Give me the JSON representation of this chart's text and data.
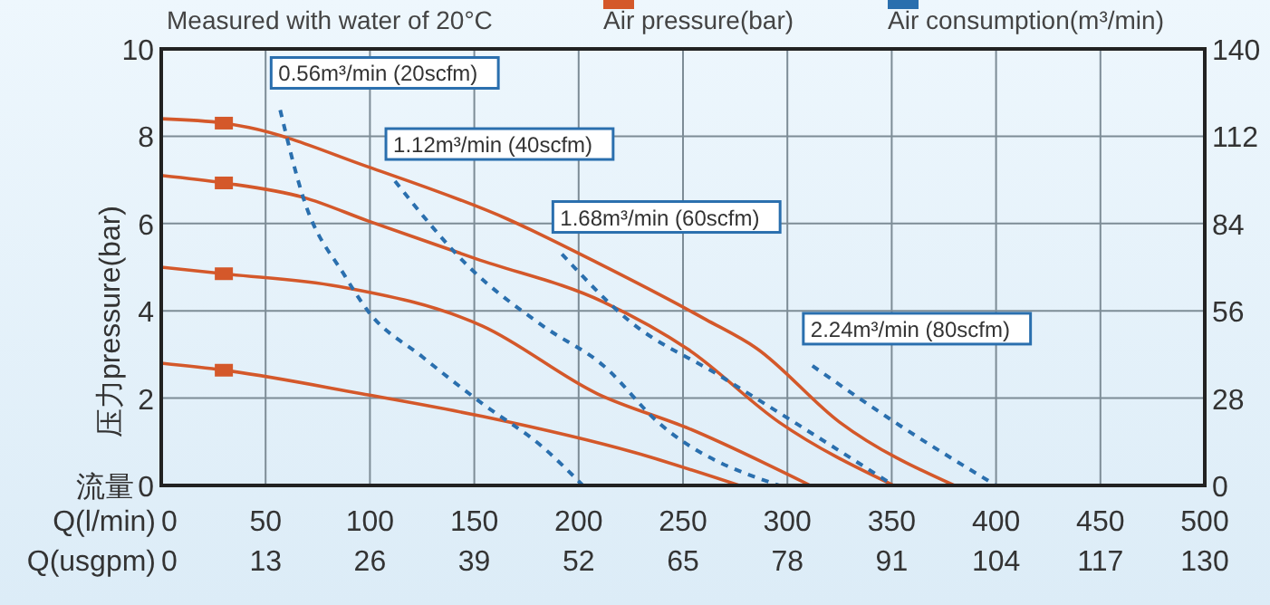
{
  "chart_data": {
    "type": "line",
    "subtitle": "Measured with water of 20°C",
    "xlabel": "Q(l/min)",
    "x2label": "Q(usgpm)",
    "ylabel": "压力pressure(bar)",
    "y2label": "Air consumption(m³/min)",
    "annotations": [
      "流量"
    ],
    "xlim": [
      0,
      500
    ],
    "xticks": [
      0,
      50,
      100,
      150,
      200,
      250,
      300,
      350,
      400,
      450,
      500
    ],
    "x2lim": [
      0,
      130
    ],
    "x2ticks": [
      0,
      13,
      26,
      39,
      52,
      65,
      78,
      91,
      104,
      117,
      130
    ],
    "ylim": [
      0,
      10
    ],
    "yticks": [
      0,
      2,
      4,
      6,
      8,
      10
    ],
    "y2lim": [
      0,
      140
    ],
    "y2ticks": [
      0,
      28,
      56,
      84,
      112,
      140
    ],
    "grid": true,
    "legend": "top",
    "line_style": "solid",
    "series": [
      {
        "name": "Air pressure(bar)",
        "color": "#d4582a",
        "x": [
          0,
          30,
          42,
          99,
          166,
          209,
          261,
          285,
          325,
          380
        ],
        "values": [
          8.4,
          8.3,
          8.2,
          7.3,
          6.1,
          5.1,
          3.8,
          3.15,
          1.45,
          0
        ]
      },
      {
        "color": "#d4582a",
        "x": [
          0,
          30,
          68,
          99,
          151,
          212,
          253,
          296,
          351
        ],
        "values": [
          7.1,
          6.93,
          6.6,
          6.06,
          5.19,
          4.2,
          3.1,
          1.45,
          0
        ]
      },
      {
        "color": "#d4582a",
        "x": [
          0,
          30,
          85,
          154,
          209,
          253,
          311
        ],
        "values": [
          5.0,
          4.85,
          4.56,
          3.65,
          2.1,
          1.3,
          0
        ]
      },
      {
        "color": "#d4582a",
        "x": [
          0,
          30,
          96,
          154,
          227,
          277
        ],
        "values": [
          2.8,
          2.64,
          2.1,
          1.58,
          0.75,
          0
        ]
      },
      {
        "type": "scatter",
        "marker": "square",
        "color": "#d4582a",
        "x": [
          30,
          30,
          30,
          30
        ],
        "values": [
          8.3,
          6.93,
          4.85,
          2.64
        ]
      },
      {
        "name": "0.56m³/min (20scfm)",
        "color": "#2a6fae",
        "line_style": "dashed",
        "x": [
          57,
          68,
          88,
          99,
          125,
          154,
          183,
          202
        ],
        "values": [
          8.6,
          6.6,
          4.8,
          4.0,
          2.95,
          1.87,
          0.87,
          0
        ]
      },
      {
        "name": "1.12m³/min (40scfm)",
        "color": "#2a6fae",
        "line_style": "dashed",
        "x": [
          112,
          148,
          183,
          212,
          238,
          296
        ],
        "values": [
          6.97,
          4.98,
          3.65,
          2.74,
          1.45,
          0
        ]
      },
      {
        "name": "1.68m³/min (60scfm)",
        "color": "#2a6fae",
        "line_style": "dashed",
        "x": [
          192,
          224,
          267,
          351
        ],
        "values": [
          5.3,
          3.78,
          2.53,
          0
        ]
      },
      {
        "name": "2.24m³/min (80scfm)",
        "color": "#2a6fae",
        "line_style": "dashed",
        "x": [
          312,
          354,
          400
        ],
        "values": [
          2.74,
          1.37,
          0
        ]
      }
    ]
  }
}
